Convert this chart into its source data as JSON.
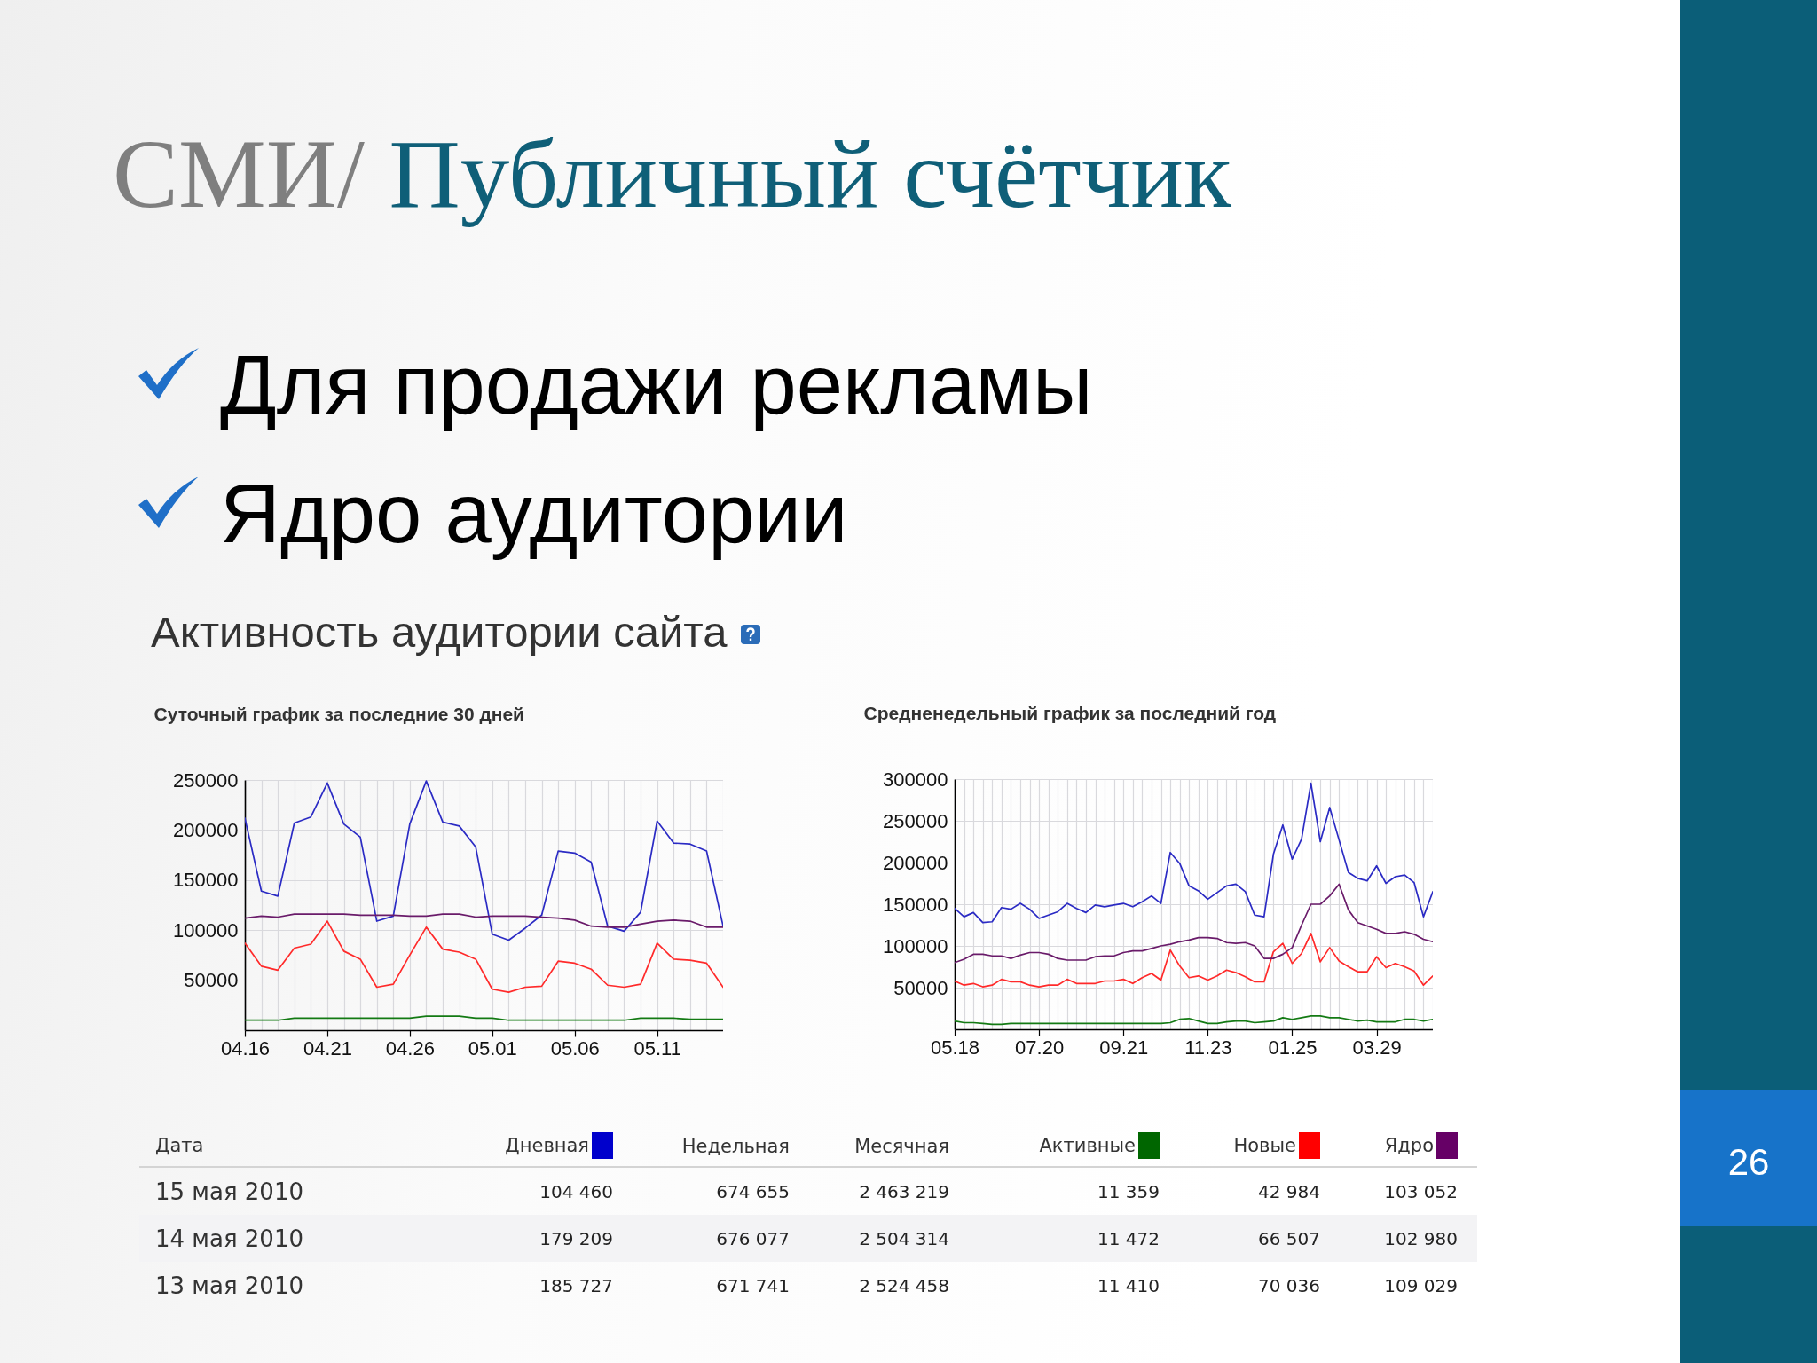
{
  "chart_data": [
    {
      "type": "other",
      "title": "СМИ/ Публичный счётчик",
      "subtitle": "Активность аудитории сайта",
      "annotations": [
        "Для продажи рекламы",
        "Ядро аудитории",
        "26"
      ]
    },
    {
      "type": "line",
      "title": "Суточный график за последние 30 дней",
      "categories": [
        "04.16",
        null,
        null,
        null,
        null,
        "04.21",
        null,
        null,
        null,
        null,
        "04.26",
        null,
        null,
        null,
        null,
        "05.01",
        null,
        null,
        null,
        null,
        "05.06",
        null,
        null,
        null,
        null,
        "05.11",
        null,
        null,
        null,
        null
      ],
      "series": [
        {
          "color": "#2b2bc4",
          "values": [
            212000,
            139000,
            134000,
            207000,
            213000,
            247000,
            206000,
            193000,
            109000,
            114000,
            206000,
            249000,
            208000,
            204000,
            183000,
            96000,
            90000,
            102000,
            115000,
            179000,
            177000,
            168000,
            104000,
            99000,
            118000,
            209000,
            187000,
            186000,
            179000,
            104000
          ]
        },
        {
          "color": "#137a13",
          "values": [
            10000,
            10000,
            10000,
            12000,
            12000,
            12000,
            12000,
            12000,
            12000,
            12000,
            12000,
            14000,
            14000,
            14000,
            12000,
            12000,
            10000,
            10000,
            10000,
            10000,
            10000,
            10000,
            10000,
            10000,
            12000,
            12000,
            12000,
            11000,
            11000,
            11000
          ]
        },
        {
          "color": "#ff2a2a",
          "values": [
            87000,
            64000,
            60000,
            82000,
            86000,
            109000,
            79000,
            71000,
            43000,
            46000,
            75000,
            103000,
            81000,
            78000,
            71000,
            41000,
            38000,
            43000,
            44000,
            69000,
            67000,
            61000,
            45000,
            43000,
            46000,
            87000,
            71000,
            70000,
            67000,
            43000
          ]
        },
        {
          "color": "#6a1b6a",
          "values": [
            112000,
            114000,
            113000,
            116000,
            116000,
            116000,
            116000,
            115000,
            115000,
            115000,
            114000,
            114000,
            116000,
            116000,
            113000,
            114000,
            114000,
            114000,
            113000,
            112000,
            110000,
            104000,
            103000,
            103000,
            106000,
            109000,
            110000,
            109000,
            103000,
            103000
          ]
        }
      ],
      "ylim": [
        0,
        250000
      ],
      "yticks": [
        50000,
        100000,
        150000,
        200000,
        250000
      ],
      "grid": true
    },
    {
      "type": "line",
      "title": "Средненедельный график за последний год",
      "categories": [
        "05.18",
        null,
        null,
        null,
        null,
        null,
        null,
        null,
        null,
        "07.20",
        null,
        null,
        null,
        null,
        null,
        null,
        null,
        null,
        "09.21",
        null,
        null,
        null,
        null,
        null,
        null,
        null,
        null,
        "11.23",
        null,
        null,
        null,
        null,
        null,
        null,
        null,
        null,
        "01.25",
        null,
        null,
        null,
        null,
        null,
        null,
        null,
        null,
        "03.29",
        null,
        null,
        null,
        null,
        null,
        null
      ],
      "series": [
        {
          "color": "#2b2bc4",
          "values": [
            145000,
            135000,
            140000,
            128000,
            129000,
            146000,
            144000,
            151000,
            144000,
            133000,
            137000,
            141000,
            151000,
            145000,
            140000,
            149000,
            147000,
            149000,
            151000,
            147000,
            153000,
            160000,
            151000,
            212000,
            199000,
            172000,
            166000,
            156000,
            164000,
            172000,
            174000,
            165000,
            137000,
            135000,
            210000,
            245000,
            204000,
            228000,
            295000,
            225000,
            266000,
            227000,
            188000,
            181000,
            178000,
            196000,
            175000,
            183000,
            185000,
            176000,
            135000,
            165000
          ]
        },
        {
          "color": "#137a13",
          "values": [
            10000,
            8000,
            8000,
            7000,
            6000,
            6000,
            7000,
            7000,
            7000,
            7000,
            7000,
            7000,
            7000,
            7000,
            7000,
            7000,
            7000,
            7000,
            7000,
            7000,
            7000,
            7000,
            7000,
            8000,
            12000,
            13000,
            10000,
            7000,
            7000,
            9000,
            10000,
            10000,
            8000,
            9000,
            10000,
            14000,
            12000,
            14000,
            16000,
            16000,
            14000,
            14000,
            12000,
            10000,
            11000,
            9000,
            9000,
            9000,
            12000,
            12000,
            10000,
            12000
          ]
        },
        {
          "color": "#ff2a2a",
          "values": [
            58000,
            53000,
            55000,
            51000,
            53000,
            60000,
            57000,
            57000,
            53000,
            51000,
            53000,
            53000,
            60000,
            55000,
            55000,
            55000,
            58000,
            58000,
            60000,
            55000,
            62000,
            67000,
            59000,
            95000,
            76000,
            62000,
            64000,
            59000,
            64000,
            71000,
            68000,
            63000,
            57000,
            57000,
            93000,
            103000,
            79000,
            91000,
            115000,
            81000,
            98000,
            82000,
            75000,
            69000,
            69000,
            87000,
            74000,
            79000,
            75000,
            70000,
            53000,
            64000
          ]
        },
        {
          "color": "#6a1b6a",
          "values": [
            80000,
            84000,
            90000,
            90000,
            88000,
            88000,
            85000,
            89000,
            92000,
            92000,
            90000,
            85000,
            83000,
            83000,
            83000,
            87000,
            88000,
            88000,
            92000,
            94000,
            94000,
            97000,
            100000,
            102000,
            105000,
            107000,
            110000,
            110000,
            109000,
            104000,
            103000,
            104000,
            100000,
            85000,
            85000,
            90000,
            98000,
            125000,
            150000,
            150000,
            160000,
            174000,
            143000,
            128000,
            124000,
            120000,
            115000,
            115000,
            117000,
            114000,
            108000,
            105000
          ]
        }
      ],
      "ylim": [
        0,
        300000
      ],
      "yticks": [
        50000,
        100000,
        150000,
        200000,
        250000,
        300000
      ],
      "grid": true
    },
    {
      "type": "other",
      "ylabel": "Дата",
      "categories": [
        "Дневная",
        "Недельная",
        "Месячная",
        "Активные",
        "Новые",
        "Ядро"
      ],
      "colors": [
        "#0000cc",
        null,
        null,
        "#006600",
        "#ff0000",
        "#660066"
      ],
      "y_categories": [
        "15 мая 2010",
        "14 мая 2010",
        "13 мая 2010"
      ],
      "cell_labels": [
        [
          "104 460",
          "674 655",
          "2 463 219",
          "11 359",
          "42 984",
          "103 052"
        ],
        [
          "179 209",
          "676 077",
          "2 504 314",
          "11 472",
          "66 507",
          "102 980"
        ],
        [
          "185 727",
          "671 741",
          "2 524 458",
          "11 410",
          "70 036",
          "109 029"
        ]
      ]
    }
  ]
}
